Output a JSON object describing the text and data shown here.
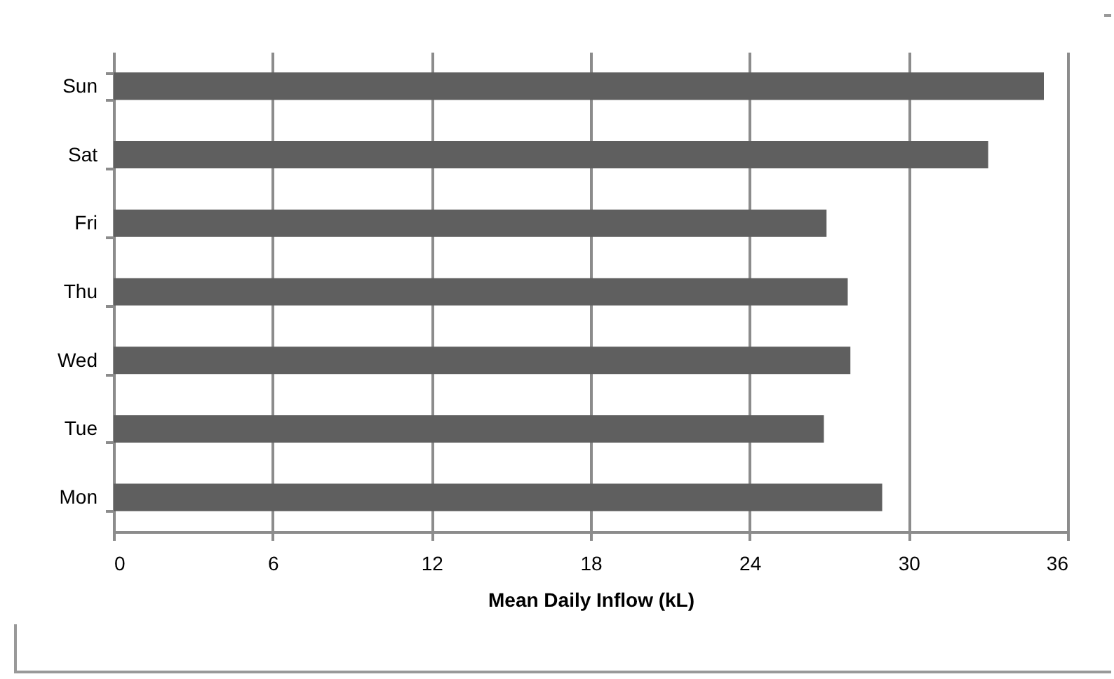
{
  "chart_data": {
    "type": "bar",
    "orientation": "horizontal",
    "xlabel": "Mean Daily Inflow (kL)",
    "categories": [
      "Sun",
      "Sat",
      "Fri",
      "Thu",
      "Wed",
      "Tue",
      "Mon"
    ],
    "values": [
      35.1,
      33.0,
      26.9,
      27.7,
      27.8,
      26.8,
      29.0
    ],
    "color": "#5f5f5f",
    "xlim": [
      0,
      36
    ],
    "xticks": [
      0,
      6,
      12,
      18,
      24,
      30,
      36
    ],
    "grid": "x"
  }
}
